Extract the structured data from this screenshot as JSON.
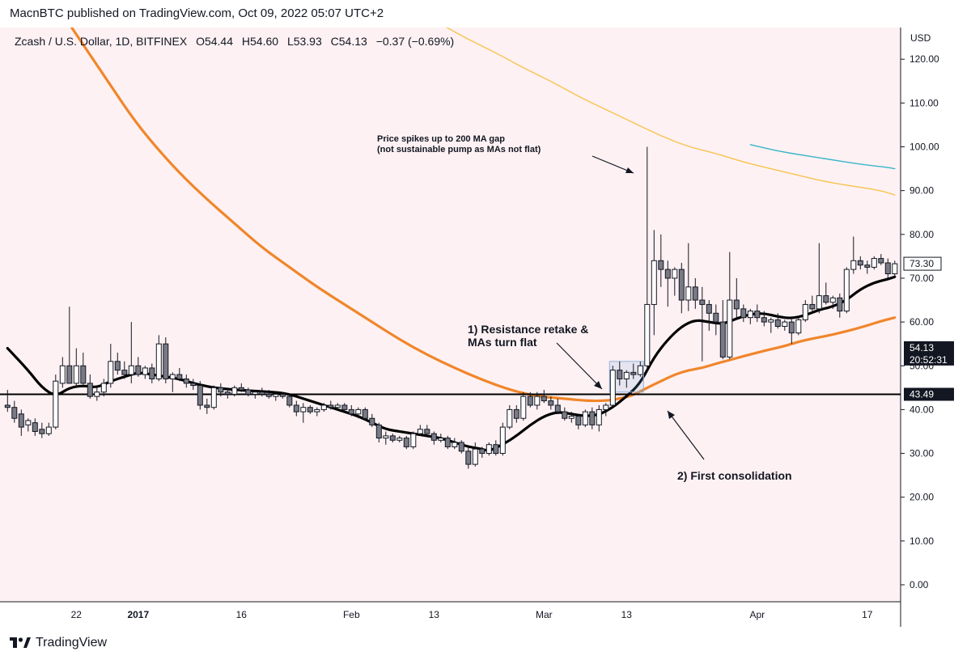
{
  "header": {
    "published": "MacnBTC published on TradingView.com, Oct 09, 2022 05:07 UTC+2"
  },
  "footer": {
    "brand": "TradingView",
    "logo_icon": "tradingview-logo-icon"
  },
  "colors": {
    "background": "#fdf1f3",
    "candle_up": "#ffffff",
    "candle_down": "#787b86",
    "ma_fast": "#000000",
    "ma_mid": "#f0862a",
    "ma_200": "#f9c34d",
    "ma_long": "#38b6c9"
  },
  "chart_data": {
    "type": "candlestick",
    "symbol_line": "Zcash / U.S. Dollar, 1D, BITFINEX",
    "ohlc_display": {
      "O": "O54.44",
      "H": "H54.60",
      "L": "L53.93",
      "C": "C54.13",
      "change": "−0.37 (−0.69%)"
    },
    "axis": {
      "currency": "USD",
      "ylim": [
        -5,
        127
      ],
      "y_ticks": [
        "0.00",
        "10.00",
        "20.00",
        "30.00",
        "40.00",
        "50.00",
        "60.00",
        "70.00",
        "80.00",
        "90.00",
        "100.00",
        "110.00",
        "120.00"
      ],
      "x_tick_labels": [
        {
          "label": "22",
          "day": 9,
          "bold": false
        },
        {
          "label": "2017",
          "day": 18,
          "bold": true
        },
        {
          "label": "16",
          "day": 33,
          "bold": false
        },
        {
          "label": "Feb",
          "day": 49,
          "bold": false
        },
        {
          "label": "13",
          "day": 61,
          "bold": false
        },
        {
          "label": "Mar",
          "day": 77,
          "bold": false
        },
        {
          "label": "13",
          "day": 89,
          "bold": false
        },
        {
          "label": "Apr",
          "day": 108,
          "bold": false
        },
        {
          "label": "17",
          "day": 124,
          "bold": false
        }
      ]
    },
    "price_labels": [
      {
        "text": "73.30",
        "value": 73.3,
        "style": "outline"
      },
      {
        "text": "54.13",
        "value": 54.13,
        "style": "dark"
      },
      {
        "text": "20:52:31",
        "value": 54.13,
        "style": "dark-sub"
      },
      {
        "text": "43.49",
        "value": 43.49,
        "style": "dark"
      }
    ],
    "horizontal_line": 43.49,
    "candles": [
      [
        -1,
        41.0,
        44.5,
        39.5,
        40.5
      ],
      [
        0,
        40.5,
        42.0,
        37.0,
        38.0
      ],
      [
        1,
        39.0,
        40.0,
        34.0,
        36.0
      ],
      [
        2,
        36.5,
        38.0,
        35.0,
        37.5
      ],
      [
        3,
        37.0,
        38.0,
        34.0,
        35.0
      ],
      [
        4,
        35.5,
        37.0,
        33.5,
        34.5
      ],
      [
        5,
        34.5,
        37.0,
        34.0,
        36.0
      ],
      [
        6,
        36.0,
        48.0,
        35.5,
        46.5
      ],
      [
        7,
        46.0,
        52.0,
        45.0,
        50.0
      ],
      [
        8,
        50.0,
        63.5,
        47.0,
        46.0
      ],
      [
        9,
        46.0,
        54.0,
        45.0,
        50.0
      ],
      [
        10,
        50.0,
        53.0,
        45.5,
        46.0
      ],
      [
        11,
        46.0,
        48.0,
        42.5,
        43.0
      ],
      [
        12,
        43.0,
        45.0,
        42.0,
        44.0
      ],
      [
        13,
        44.0,
        47.0,
        43.0,
        46.0
      ],
      [
        14,
        46.0,
        55.0,
        45.0,
        51.0
      ],
      [
        15,
        51.0,
        53.0,
        48.0,
        49.0
      ],
      [
        16,
        49.0,
        51.0,
        47.0,
        48.0
      ],
      [
        17,
        48.0,
        60.0,
        46.0,
        50.0
      ],
      [
        18,
        50.0,
        52.0,
        47.5,
        48.0
      ],
      [
        19,
        48.0,
        50.0,
        47.0,
        49.5
      ],
      [
        20,
        49.5,
        50.5,
        46.0,
        47.0
      ],
      [
        21,
        47.0,
        57.0,
        46.5,
        55.0
      ],
      [
        22,
        55.0,
        56.5,
        46.0,
        47.0
      ],
      [
        23,
        47.0,
        48.5,
        44.0,
        48.0
      ],
      [
        24,
        48.0,
        49.5,
        46.5,
        47.0
      ],
      [
        25,
        47.0,
        48.0,
        45.0,
        46.0
      ],
      [
        26,
        46.0,
        47.0,
        44.5,
        45.5
      ],
      [
        27,
        45.5,
        46.5,
        40.0,
        41.0
      ],
      [
        28,
        41.0,
        42.5,
        39.0,
        40.5
      ],
      [
        29,
        40.5,
        45.5,
        40.0,
        45.0
      ],
      [
        30,
        45.0,
        46.0,
        43.0,
        44.0
      ],
      [
        31,
        44.0,
        45.0,
        42.5,
        43.5
      ],
      [
        32,
        43.5,
        45.5,
        43.0,
        45.0
      ],
      [
        33,
        45.0,
        46.0,
        44.0,
        44.5
      ],
      [
        34,
        44.5,
        45.0,
        43.0,
        43.5
      ],
      [
        35,
        43.5,
        44.5,
        42.5,
        44.0
      ],
      [
        36,
        44.0,
        45.0,
        43.0,
        43.5
      ],
      [
        37,
        43.5,
        44.5,
        42.5,
        43.0
      ],
      [
        38,
        43.0,
        44.0,
        42.0,
        43.5
      ],
      [
        39,
        43.5,
        44.0,
        42.5,
        43.0
      ],
      [
        40,
        43.0,
        43.5,
        40.5,
        41.0
      ],
      [
        41,
        41.0,
        42.0,
        38.5,
        39.5
      ],
      [
        42,
        39.5,
        41.5,
        37.0,
        40.5
      ],
      [
        43,
        40.5,
        41.0,
        39.0,
        39.5
      ],
      [
        44,
        39.5,
        40.5,
        38.5,
        40.0
      ],
      [
        45,
        40.0,
        41.5,
        39.5,
        41.0
      ],
      [
        46,
        41.0,
        42.0,
        40.0,
        40.5
      ],
      [
        47,
        40.5,
        41.5,
        40.0,
        41.0
      ],
      [
        48,
        41.0,
        41.5,
        39.5,
        40.0
      ],
      [
        49,
        40.0,
        41.0,
        38.5,
        39.0
      ],
      [
        50,
        39.0,
        40.5,
        38.0,
        40.0
      ],
      [
        51,
        40.0,
        40.5,
        37.5,
        38.0
      ],
      [
        52,
        38.0,
        39.0,
        36.0,
        36.5
      ],
      [
        53,
        36.5,
        37.0,
        32.5,
        33.5
      ],
      [
        54,
        33.5,
        35.0,
        32.0,
        34.0
      ],
      [
        55,
        34.0,
        34.5,
        32.5,
        33.0
      ],
      [
        56,
        33.0,
        34.0,
        32.5,
        33.5
      ],
      [
        57,
        33.5,
        34.0,
        31.0,
        31.5
      ],
      [
        58,
        31.5,
        35.0,
        31.0,
        34.5
      ],
      [
        59,
        34.5,
        36.5,
        34.0,
        35.5
      ],
      [
        60,
        35.5,
        36.5,
        34.0,
        34.5
      ],
      [
        61,
        34.5,
        35.0,
        32.0,
        33.0
      ],
      [
        62,
        33.0,
        34.5,
        32.5,
        33.5
      ],
      [
        63,
        33.5,
        34.0,
        31.0,
        31.5
      ],
      [
        64,
        31.5,
        33.5,
        31.0,
        32.5
      ],
      [
        65,
        32.5,
        33.0,
        30.0,
        30.5
      ],
      [
        66,
        30.5,
        31.5,
        26.5,
        27.5
      ],
      [
        67,
        27.5,
        32.5,
        27.0,
        31.0
      ],
      [
        68,
        31.0,
        31.5,
        29.0,
        30.0
      ],
      [
        69,
        30.0,
        32.5,
        29.5,
        32.0
      ],
      [
        70,
        32.0,
        33.0,
        29.5,
        30.0
      ],
      [
        71,
        30.0,
        37.0,
        29.5,
        36.0
      ],
      [
        72,
        36.0,
        41.0,
        35.5,
        40.0
      ],
      [
        73,
        40.0,
        41.0,
        37.0,
        38.0
      ],
      [
        74,
        38.0,
        44.0,
        37.5,
        43.0
      ],
      [
        75,
        43.0,
        44.0,
        40.5,
        41.0
      ],
      [
        76,
        41.0,
        44.0,
        40.0,
        43.0
      ],
      [
        77,
        43.0,
        44.5,
        41.5,
        42.0
      ],
      [
        78,
        42.0,
        43.0,
        40.0,
        41.0
      ],
      [
        79,
        41.0,
        42.5,
        39.0,
        39.5
      ],
      [
        80,
        39.5,
        40.5,
        37.5,
        38.0
      ],
      [
        81,
        38.0,
        39.5,
        37.0,
        38.5
      ],
      [
        82,
        38.5,
        39.0,
        35.5,
        36.5
      ],
      [
        83,
        36.5,
        40.0,
        36.0,
        39.5
      ],
      [
        84,
        39.5,
        40.5,
        35.5,
        36.5
      ],
      [
        85,
        36.5,
        41.0,
        35.0,
        40.0
      ],
      [
        86,
        40.0,
        41.5,
        38.5,
        41.0
      ],
      [
        87,
        41.0,
        50.0,
        40.5,
        49.0
      ],
      [
        88,
        49.0,
        51.0,
        45.5,
        47.0
      ],
      [
        89,
        47.0,
        49.0,
        45.0,
        48.5
      ],
      [
        90,
        48.5,
        50.5,
        47.0,
        48.0
      ],
      [
        91,
        48.0,
        51.0,
        47.5,
        50.0
      ],
      [
        92,
        50.0,
        100.0,
        48.5,
        64.0
      ],
      [
        93,
        64.0,
        81.0,
        57.0,
        74.0
      ],
      [
        94,
        74.0,
        80.0,
        68.0,
        72.0
      ],
      [
        95,
        72.0,
        74.0,
        63.5,
        70.0
      ],
      [
        96,
        70.0,
        72.5,
        66.0,
        72.0
      ],
      [
        97,
        72.0,
        73.5,
        62.0,
        65.0
      ],
      [
        98,
        65.0,
        78.0,
        62.5,
        68.0
      ],
      [
        99,
        68.0,
        70.0,
        63.0,
        65.0
      ],
      [
        100,
        65.0,
        68.0,
        51.0,
        64.0
      ],
      [
        101,
        64.0,
        65.0,
        58.0,
        62.0
      ],
      [
        102,
        62.0,
        64.0,
        57.0,
        60.0
      ],
      [
        103,
        60.0,
        65.0,
        51.5,
        52.0
      ],
      [
        104,
        52.0,
        76.0,
        51.5,
        65.0
      ],
      [
        105,
        65.0,
        70.0,
        61.0,
        63.0
      ],
      [
        106,
        63.0,
        64.0,
        60.0,
        61.0
      ],
      [
        107,
        61.0,
        63.0,
        59.5,
        62.5
      ],
      [
        108,
        62.5,
        64.0,
        60.0,
        61.0
      ],
      [
        109,
        61.0,
        62.5,
        59.0,
        60.0
      ],
      [
        110,
        60.0,
        61.0,
        57.5,
        60.5
      ],
      [
        111,
        60.5,
        62.0,
        58.5,
        59.0
      ],
      [
        112,
        59.0,
        60.5,
        58.0,
        60.0
      ],
      [
        113,
        60.0,
        61.0,
        55.0,
        57.5
      ],
      [
        114,
        57.5,
        61.0,
        57.0,
        60.5
      ],
      [
        115,
        60.5,
        65.0,
        60.0,
        64.0
      ],
      [
        116,
        64.0,
        66.0,
        62.5,
        63.0
      ],
      [
        117,
        63.0,
        78.0,
        62.0,
        66.0
      ],
      [
        118,
        66.0,
        69.0,
        64.0,
        64.5
      ],
      [
        119,
        64.5,
        66.0,
        63.0,
        65.5
      ],
      [
        120,
        65.5,
        66.5,
        61.0,
        62.5
      ],
      [
        121,
        62.5,
        72.5,
        62.0,
        72.0
      ],
      [
        122,
        72.0,
        79.5,
        71.0,
        74.0
      ],
      [
        123,
        74.0,
        75.0,
        72.0,
        73.0
      ],
      [
        124,
        73.0,
        74.0,
        71.0,
        72.5
      ],
      [
        125,
        72.5,
        75.0,
        72.0,
        74.5
      ],
      [
        126,
        74.5,
        75.5,
        73.0,
        73.5
      ],
      [
        127,
        73.5,
        74.5,
        70.0,
        71.0
      ],
      [
        128,
        71.0,
        74.0,
        70.5,
        73.3
      ]
    ],
    "ma_fast": [
      [
        -1,
        54
      ],
      [
        2,
        49
      ],
      [
        4,
        45
      ],
      [
        6,
        43
      ],
      [
        8,
        45
      ],
      [
        10,
        45.5
      ],
      [
        12,
        45
      ],
      [
        14,
        46.5
      ],
      [
        16,
        47.5
      ],
      [
        18,
        48.5
      ],
      [
        20,
        48
      ],
      [
        22,
        47.5
      ],
      [
        24,
        47
      ],
      [
        26,
        46
      ],
      [
        28,
        45.3
      ],
      [
        30,
        44.8
      ],
      [
        34,
        44.3
      ],
      [
        38,
        44
      ],
      [
        40,
        43.5
      ],
      [
        42,
        42.5
      ],
      [
        44,
        41.5
      ],
      [
        46,
        40.5
      ],
      [
        48,
        39.5
      ],
      [
        50,
        38.5
      ],
      [
        52,
        37
      ],
      [
        54,
        35.5
      ],
      [
        56,
        35
      ],
      [
        58,
        34.5
      ],
      [
        60,
        34
      ],
      [
        62,
        33.5
      ],
      [
        64,
        32.5
      ],
      [
        66,
        31.5
      ],
      [
        68,
        31
      ],
      [
        69,
        30.5
      ],
      [
        71,
        32
      ],
      [
        73,
        34
      ],
      [
        75,
        36.5
      ],
      [
        77,
        38.5
      ],
      [
        79,
        39.5
      ],
      [
        81,
        39
      ],
      [
        83,
        38.5
      ],
      [
        85,
        38.8
      ],
      [
        87,
        40.5
      ],
      [
        89,
        43
      ],
      [
        91,
        46
      ],
      [
        93,
        52
      ],
      [
        95,
        56
      ],
      [
        97,
        59
      ],
      [
        99,
        60.5
      ],
      [
        101,
        60
      ],
      [
        103,
        59.5
      ],
      [
        105,
        60.8
      ],
      [
        107,
        61.8
      ],
      [
        109,
        62
      ],
      [
        111,
        61.2
      ],
      [
        113,
        60.8
      ],
      [
        115,
        61.5
      ],
      [
        117,
        62.8
      ],
      [
        119,
        63.5
      ],
      [
        121,
        65
      ],
      [
        123,
        67.5
      ],
      [
        125,
        69
      ],
      [
        127,
        69.8
      ],
      [
        128,
        70.3
      ]
    ],
    "ma_mid": [
      [
        8,
        128
      ],
      [
        11,
        121
      ],
      [
        14,
        114
      ],
      [
        17,
        107
      ],
      [
        20,
        101
      ],
      [
        24,
        94
      ],
      [
        28,
        88
      ],
      [
        32,
        82.5
      ],
      [
        36,
        77
      ],
      [
        40,
        72.5
      ],
      [
        44,
        68
      ],
      [
        48,
        64
      ],
      [
        52,
        60
      ],
      [
        56,
        56
      ],
      [
        60,
        52.5
      ],
      [
        64,
        49.5
      ],
      [
        68,
        46.8
      ],
      [
        72,
        44.5
      ],
      [
        76,
        43
      ],
      [
        80,
        42.5
      ],
      [
        83,
        42
      ],
      [
        86,
        42
      ],
      [
        88,
        42.5
      ],
      [
        90,
        43.3
      ],
      [
        92,
        45
      ],
      [
        94,
        46.5
      ],
      [
        96,
        48
      ],
      [
        98,
        49
      ],
      [
        100,
        49.5
      ],
      [
        102,
        50.5
      ],
      [
        104,
        51.3
      ],
      [
        106,
        52.2
      ],
      [
        108,
        53
      ],
      [
        110,
        53.8
      ],
      [
        112,
        54.5
      ],
      [
        114,
        55.5
      ],
      [
        116,
        56.2
      ],
      [
        118,
        56.8
      ],
      [
        120,
        57.5
      ],
      [
        122,
        58.3
      ],
      [
        124,
        59.2
      ],
      [
        126,
        60.2
      ],
      [
        128,
        61
      ]
    ],
    "ma_200": [
      [
        62,
        128
      ],
      [
        66,
        124.5
      ],
      [
        70,
        121.5
      ],
      [
        74,
        118
      ],
      [
        78,
        115
      ],
      [
        82,
        111.5
      ],
      [
        86,
        108.5
      ],
      [
        90,
        105.5
      ],
      [
        94,
        102.5
      ],
      [
        98,
        100
      ],
      [
        102,
        98.5
      ],
      [
        106,
        96.5
      ],
      [
        110,
        95
      ],
      [
        114,
        93.5
      ],
      [
        118,
        92
      ],
      [
        122,
        91
      ],
      [
        126,
        90
      ],
      [
        128,
        89
      ]
    ],
    "ma_long": [
      [
        107,
        100.5
      ],
      [
        111,
        99
      ],
      [
        115,
        98
      ],
      [
        119,
        97
      ],
      [
        123,
        96
      ],
      [
        127,
        95.3
      ],
      [
        128,
        95
      ]
    ],
    "highlight_box": {
      "day_start": 87,
      "day_end": 91,
      "low": 44,
      "high": 51
    },
    "annotations": [
      {
        "id": "spike",
        "lines": [
          "Price spikes up to 200 MA gap",
          "(not sustainable pump as MAs not flat)"
        ]
      },
      {
        "id": "resistance",
        "lines": [
          "1) Resistance retake &",
          "MAs turn flat"
        ]
      },
      {
        "id": "consolidation",
        "lines": [
          "2) First consolidation"
        ]
      }
    ]
  }
}
